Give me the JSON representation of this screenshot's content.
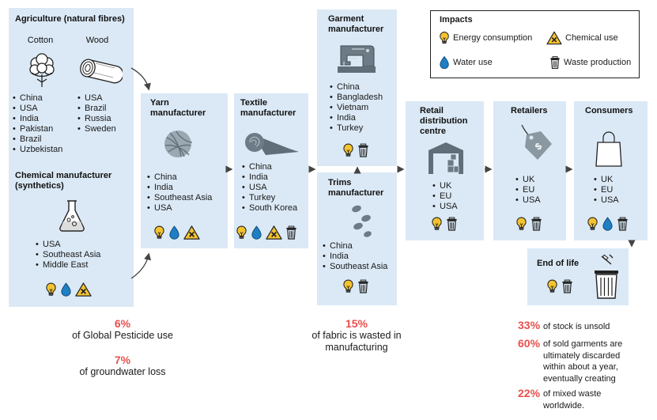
{
  "agriculture": {
    "title": "Agriculture (natural fibres)",
    "cotton": {
      "label": "Cotton",
      "countries": [
        "China",
        "USA",
        "India",
        "Pakistan",
        "Brazil",
        "Uzbekistan"
      ]
    },
    "wood": {
      "label": "Wood",
      "countries": [
        "USA",
        "Brazil",
        "Russia",
        "Sweden"
      ]
    },
    "chemical": {
      "title": "Chemical manufacturer\n(synthetics)",
      "countries": [
        "USA",
        "Southeast Asia",
        "Middle East"
      ],
      "impacts": [
        "energy",
        "water",
        "chemical"
      ]
    }
  },
  "yarn": {
    "title": "Yarn\nmanufacturer",
    "countries": [
      "China",
      "India",
      "Southeast Asia",
      "USA"
    ],
    "impacts": [
      "energy",
      "water",
      "chemical"
    ]
  },
  "textile": {
    "title": "Textile\nmanufacturer",
    "countries": [
      "China",
      "India",
      "USA",
      "Turkey",
      "South Korea"
    ],
    "impacts": [
      "energy",
      "water",
      "chemical",
      "waste"
    ]
  },
  "garment": {
    "title": "Garment\nmanufacturer",
    "countries": [
      "China",
      "Bangladesh",
      "Vietnam",
      "India",
      "Turkey"
    ],
    "impacts": [
      "energy",
      "waste"
    ]
  },
  "trims": {
    "title": "Trims\nmanufacturer",
    "countries": [
      "China",
      "India",
      "Southeast Asia"
    ],
    "impacts": [
      "energy",
      "waste"
    ]
  },
  "retail_dc": {
    "title": "Retail\ndistribution\ncentre",
    "countries": [
      "UK",
      "EU",
      "USA"
    ],
    "impacts": [
      "energy",
      "waste"
    ]
  },
  "retailers": {
    "title": "Retailers",
    "countries": [
      "UK",
      "EU",
      "USA"
    ],
    "impacts": [
      "energy",
      "waste"
    ]
  },
  "consumers": {
    "title": "Consumers",
    "countries": [
      "UK",
      "EU",
      "USA"
    ],
    "impacts": [
      "energy",
      "water",
      "waste"
    ]
  },
  "end_of_life": {
    "title": "End of life",
    "impacts": [
      "energy",
      "waste"
    ]
  },
  "legend": {
    "title": "Impacts",
    "energy": "Energy consumption",
    "chemical": "Chemical use",
    "water": "Water use",
    "waste": "Waste production"
  },
  "stats": {
    "pesticide_pct": "6%",
    "pesticide_text": "of Global Pesticide use",
    "groundwater_pct": "7%",
    "groundwater_text": "of groundwater loss",
    "fabric_pct": "15%",
    "fabric_text": "of fabric is wasted in\nmanufacturing",
    "unsold_pct": "33%",
    "unsold_text": "of stock is unsold",
    "discarded_pct": "60%",
    "discarded_text": "of sold garments are\nultimately discarded\nwithin about a year,\neventually creating",
    "mixed_pct": "22%",
    "mixed_text": "of mixed waste\nworldwide."
  },
  "colors": {
    "box": "#dbe9f6",
    "accent": "#e8504d",
    "energy": "#f4c32f",
    "water": "#1f7fc4",
    "chemical": "#f4c32f"
  }
}
